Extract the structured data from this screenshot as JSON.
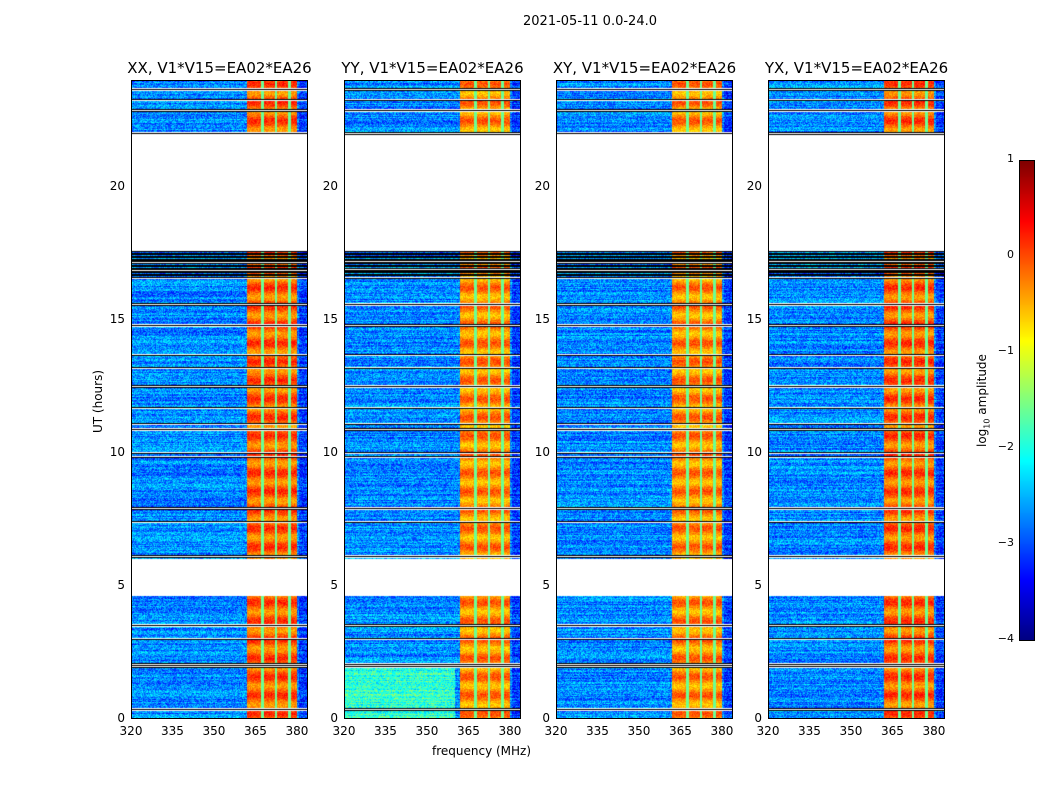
{
  "chart_data": {
    "type": "heatmap",
    "title": "2021-05-11 0.0-24.0",
    "panels": [
      {
        "title": "XX, V1*V15=EA02*EA26"
      },
      {
        "title": "YY, V1*V15=EA02*EA26"
      },
      {
        "title": "XY, V1*V15=EA02*EA26"
      },
      {
        "title": "YX, V1*V15=EA02*EA26"
      }
    ],
    "xlabel": "frequency (MHz)",
    "ylabel": "UT (hours)",
    "xlim": [
      320,
      384
    ],
    "ylim": [
      0,
      24
    ],
    "xticks": [
      "320",
      "335",
      "350",
      "365",
      "380"
    ],
    "yticks": [
      "0",
      "5",
      "10",
      "15",
      "20"
    ],
    "colorbar": {
      "label_main": "log",
      "label_sub": "10",
      "label_rest": " amplitude",
      "range": [
        -4,
        1
      ],
      "ticks": [
        "1",
        "0",
        "−1",
        "−2",
        "−3",
        "−4"
      ],
      "colormap": "jet"
    },
    "data_gaps_ut": [
      [
        4.6,
        6.0
      ],
      [
        17.6,
        22.0
      ]
    ],
    "flagged_rows_ut": [
      0.35,
      1.95,
      2.05,
      3.0,
      3.5,
      6.1,
      7.4,
      7.9,
      9.85,
      10.0,
      10.9,
      11.1,
      11.7,
      12.5,
      13.2,
      13.7,
      14.8,
      15.6,
      16.6,
      16.9,
      17.2,
      22.05,
      22.9,
      23.3,
      23.7
    ],
    "strong_band_mhz": [
      362,
      380
    ],
    "band_stripes_mhz": [
      367.5,
      372.5,
      377.5
    ],
    "typical_log_amplitude": {
      "background": -2.7,
      "band": -0.3
    }
  }
}
